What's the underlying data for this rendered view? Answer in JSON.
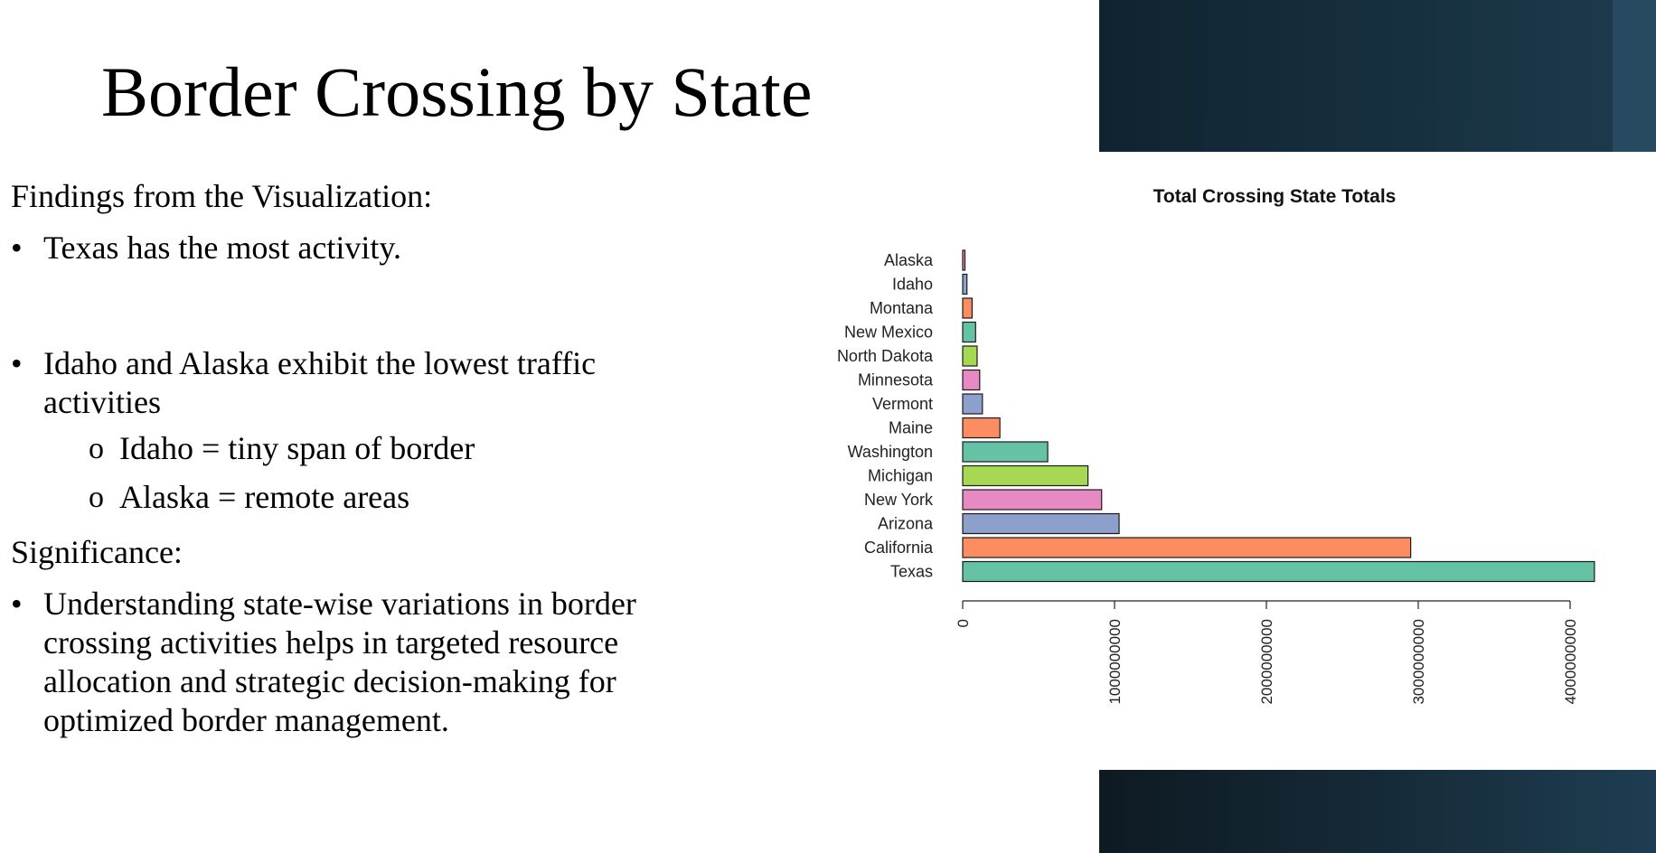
{
  "slide": {
    "title": "Border Crossing by State",
    "findings_heading": "Findings from the Visualization:",
    "bullets": [
      {
        "text": "Texas has the most activity.",
        "sub": []
      },
      {
        "text": "Idaho and Alaska exhibit the lowest traffic activities",
        "sub": [
          "Idaho = tiny span of border",
          "Alaska = remote areas"
        ]
      }
    ],
    "significance_heading": "Significance:",
    "significance_bullets": [
      "Understanding state-wise variations in border crossing activities helps in targeted resource allocation and strategic decision-making for optimized border management."
    ],
    "bullet_glyph": "•",
    "sub_glyph": "o"
  },
  "chart_data": {
    "type": "bar",
    "orientation": "horizontal",
    "title": "Total Crossing State Totals",
    "xlabel": "",
    "ylabel": "",
    "categories": [
      "Alaska",
      "Idaho",
      "Montana",
      "New Mexico",
      "North Dakota",
      "Minnesota",
      "Vermont",
      "Maine",
      "Washington",
      "Michigan",
      "New York",
      "Arizona",
      "California",
      "Texas"
    ],
    "values": [
      15000000,
      28000000,
      62000000,
      85000000,
      95000000,
      112000000,
      130000000,
      245000000,
      560000000,
      825000000,
      915000000,
      1030000000,
      2950000000,
      4160000000
    ],
    "colors": [
      "#e78ac3",
      "#8da0cb",
      "#fc8d62",
      "#66c2a5",
      "#a6d854",
      "#e78ac3",
      "#8da0cb",
      "#fc8d62",
      "#66c2a5",
      "#a6d854",
      "#e78ac3",
      "#8da0cb",
      "#fc8d62",
      "#66c2a5"
    ],
    "xlim": [
      0,
      4000000000
    ],
    "xticks": [
      0,
      1000000000,
      2000000000,
      3000000000,
      4000000000
    ],
    "xtick_labels": [
      "0",
      "1000000000",
      "2000000000",
      "3000000000",
      "4000000000"
    ],
    "grid": false,
    "legend": "none"
  }
}
